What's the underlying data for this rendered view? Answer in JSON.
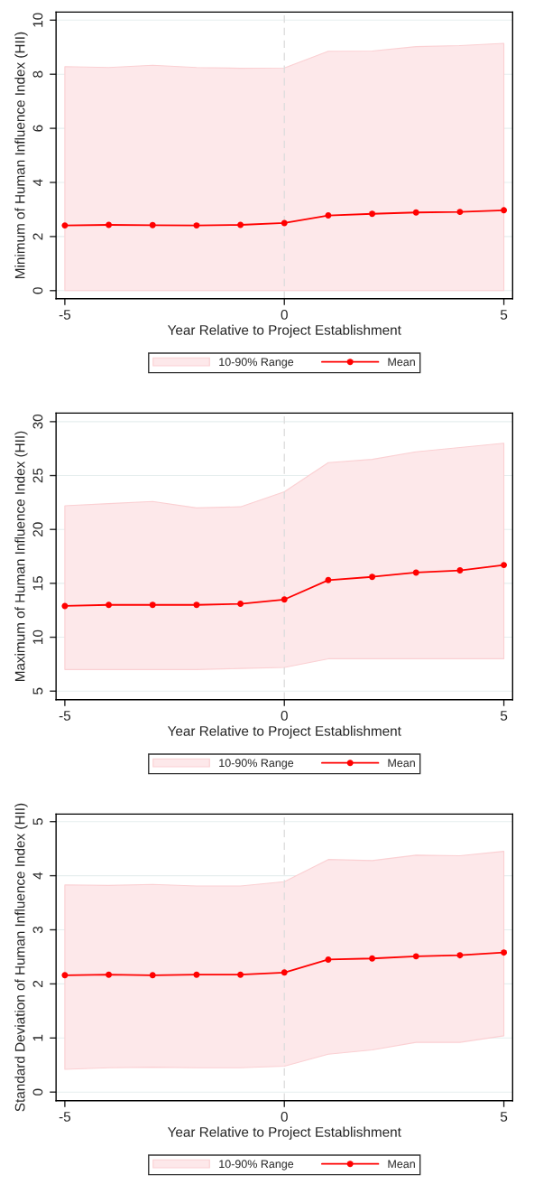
{
  "chart_data": [
    {
      "type": "line",
      "xlabel": "Year Relative to Project Establishment",
      "ylabel": "Minimum of Human Influence Index (HII)",
      "x": [
        -5,
        -4,
        -3,
        -2,
        -1,
        0,
        1,
        2,
        3,
        4,
        5
      ],
      "xlim": [
        -5.2,
        5.2
      ],
      "xticks": [
        -5,
        0,
        5
      ],
      "ylim": [
        -0.3,
        10.3
      ],
      "yticks": [
        0,
        2,
        4,
        6,
        8,
        10
      ],
      "grid": "y",
      "legend": "bottom",
      "ref_lines": [
        {
          "axis": "x",
          "value": 0,
          "color": "#dddddd",
          "line_style": "dashed"
        }
      ],
      "series": [
        {
          "name": "10-90% Range",
          "color": "#fde8ea",
          "values": [
            null,
            null,
            null,
            null,
            null,
            null,
            null,
            null,
            null,
            null,
            null
          ],
          "lower": [
            0,
            0,
            0,
            0,
            0,
            0,
            0,
            0,
            0,
            0,
            0
          ],
          "upper": [
            8.28,
            8.25,
            8.33,
            8.25,
            8.22,
            8.23,
            8.85,
            8.86,
            9.02,
            9.06,
            9.14
          ]
        },
        {
          "name": "Mean",
          "color": "#ff0000",
          "marker": "circle",
          "values": [
            2.41,
            2.43,
            2.42,
            2.41,
            2.43,
            2.5,
            2.78,
            2.84,
            2.89,
            2.91,
            2.97
          ]
        }
      ]
    },
    {
      "type": "line",
      "xlabel": "Year Relative to Project Establishment",
      "ylabel": "Maximum of Human Influence Index (HII)",
      "x": [
        -5,
        -4,
        -3,
        -2,
        -1,
        0,
        1,
        2,
        3,
        4,
        5
      ],
      "xlim": [
        -5.2,
        5.2
      ],
      "xticks": [
        -5,
        0,
        5
      ],
      "ylim": [
        4.2,
        30.8
      ],
      "yticks": [
        5,
        10,
        15,
        20,
        25,
        30
      ],
      "grid": "y",
      "legend": "bottom",
      "ref_lines": [
        {
          "axis": "x",
          "value": 0,
          "color": "#dddddd",
          "line_style": "dashed"
        }
      ],
      "series": [
        {
          "name": "10-90% Range",
          "color": "#fde8ea",
          "values": [
            null,
            null,
            null,
            null,
            null,
            null,
            null,
            null,
            null,
            null,
            null
          ],
          "lower": [
            7.0,
            7.0,
            7.0,
            7.0,
            7.1,
            7.2,
            8.0,
            8.0,
            8.0,
            8.0,
            8.0
          ],
          "upper": [
            22.2,
            22.4,
            22.6,
            22.0,
            22.1,
            23.5,
            26.2,
            26.5,
            27.2,
            27.6,
            28.0
          ]
        },
        {
          "name": "Mean",
          "color": "#ff0000",
          "marker": "circle",
          "values": [
            12.9,
            13.0,
            13.0,
            13.0,
            13.1,
            13.5,
            15.3,
            15.6,
            16.0,
            16.2,
            16.7
          ]
        }
      ]
    },
    {
      "type": "line",
      "xlabel": "Year Relative to Project Establishment",
      "ylabel": "Standard Deviation of Human Influence Index (HII)",
      "x": [
        -5,
        -4,
        -3,
        -2,
        -1,
        0,
        1,
        2,
        3,
        4,
        5
      ],
      "xlim": [
        -5.2,
        5.2
      ],
      "xticks": [
        -5,
        0,
        5
      ],
      "ylim": [
        -0.16,
        5.14
      ],
      "yticks": [
        0,
        1,
        2,
        3,
        4,
        5
      ],
      "grid": "y",
      "legend": "bottom",
      "ref_lines": [
        {
          "axis": "x",
          "value": 0,
          "color": "#dddddd",
          "line_style": "dashed"
        }
      ],
      "series": [
        {
          "name": "10-90% Range",
          "color": "#fde8ea",
          "values": [
            null,
            null,
            null,
            null,
            null,
            null,
            null,
            null,
            null,
            null,
            null
          ],
          "lower": [
            0.42,
            0.45,
            0.46,
            0.45,
            0.45,
            0.48,
            0.7,
            0.78,
            0.92,
            0.92,
            1.04
          ],
          "upper": [
            3.83,
            3.82,
            3.84,
            3.81,
            3.81,
            3.89,
            4.3,
            4.28,
            4.38,
            4.37,
            4.45
          ]
        },
        {
          "name": "Mean",
          "color": "#ff0000",
          "marker": "circle",
          "values": [
            2.16,
            2.17,
            2.16,
            2.17,
            2.17,
            2.21,
            2.45,
            2.47,
            2.51,
            2.53,
            2.58
          ]
        }
      ]
    }
  ]
}
